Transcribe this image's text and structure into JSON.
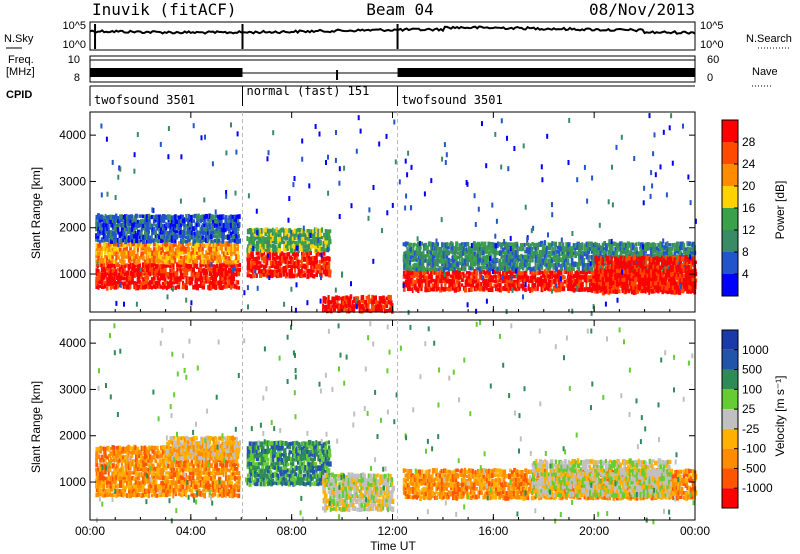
{
  "header": {
    "station": "Inuvik (fitACF)",
    "beam": "Beam 04",
    "date": "08/Nov/2013"
  },
  "strips": {
    "nsky_label": "N.Sky",
    "nsky_ticks": [
      "10^5",
      "10^0"
    ],
    "nsearch_label": "N.Search",
    "nsearch_ticks": [
      "10^5",
      "10^0"
    ],
    "freq_label_1": "Freq.",
    "freq_label_2": "[MHz]",
    "freq_ticks": [
      "10",
      "8"
    ],
    "nave_label": "Nave",
    "nave_ticks": [
      "60",
      "0"
    ],
    "cpid_label": "CPID",
    "cpid_segments": [
      {
        "label": "twofsound 3501",
        "start": 0,
        "end": 6.05
      },
      {
        "label": "normal (fast) 151",
        "start": 6.05,
        "end": 12.2
      },
      {
        "label": "twofsound 3501",
        "start": 12.2,
        "end": 24
      }
    ]
  },
  "colors": {
    "power": [
      "#0000ff",
      "#2255cc",
      "#3a8a66",
      "#3aa04a",
      "#ffd200",
      "#ff8c00",
      "#ff4a00",
      "#ff0000"
    ],
    "velocity": [
      "#ff0000",
      "#ff5500",
      "#ff8c00",
      "#ffb000",
      "#c0c0c0",
      "#66cc33",
      "#2e8b57",
      "#2255aa",
      "#1a3aa8"
    ]
  },
  "chart_data": [
    {
      "type": "heatmap",
      "name": "power",
      "ylabel": "Slant Range [km]",
      "ylim": [
        180,
        4500
      ],
      "xlim": [
        0,
        24
      ],
      "y_ticks": [
        1000,
        2000,
        3000,
        4000
      ],
      "x_tick_labels": [
        "00:00",
        "04:00",
        "08:00",
        "12:00",
        "16:00",
        "20:00",
        "00:00"
      ],
      "colorbar": {
        "label": "Power [dB]",
        "ticks": [
          "28",
          "24",
          "20",
          "16",
          "12",
          "8",
          "4"
        ]
      },
      "regions": [
        {
          "t0": 0.2,
          "t1": 5.9,
          "r0": 700,
          "r1": 1250,
          "level": 7
        },
        {
          "t0": 0.2,
          "t1": 5.9,
          "r0": 1250,
          "r1": 1700,
          "level": 5
        },
        {
          "t0": 0.2,
          "t1": 5.9,
          "r0": 1700,
          "r1": 2300,
          "level": 1
        },
        {
          "t0": 6.2,
          "t1": 9.5,
          "r0": 950,
          "r1": 1500,
          "level": 7
        },
        {
          "t0": 6.2,
          "t1": 9.5,
          "r0": 1500,
          "r1": 2000,
          "level": 3
        },
        {
          "t0": 9.2,
          "t1": 12.0,
          "r0": 200,
          "r1": 550,
          "level": 7
        },
        {
          "t0": 12.4,
          "t1": 24,
          "r0": 650,
          "r1": 1100,
          "level": 7
        },
        {
          "t0": 12.4,
          "t1": 24,
          "r0": 1100,
          "r1": 1700,
          "level": 2
        },
        {
          "t0": 20.0,
          "t1": 24,
          "r0": 600,
          "r1": 1400,
          "level": 7
        }
      ]
    },
    {
      "type": "heatmap",
      "name": "velocity",
      "ylabel": "Slant Range [km]",
      "xlabel": "Time UT",
      "ylim": [
        180,
        4500
      ],
      "xlim": [
        0,
        24
      ],
      "y_ticks": [
        1000,
        2000,
        3000,
        4000
      ],
      "x_tick_labels": [
        "00:00",
        "04:00",
        "08:00",
        "12:00",
        "16:00",
        "20:00",
        "00:00"
      ],
      "colorbar": {
        "label": "Velocity [m s⁻¹]",
        "ticks": [
          "1000",
          "500",
          "100",
          "25",
          "-25",
          "-100",
          "-500",
          "-1000"
        ]
      },
      "regions": [
        {
          "t0": 0.2,
          "t1": 5.9,
          "r0": 700,
          "r1": 1800,
          "level": 2
        },
        {
          "t0": 3.0,
          "t1": 5.9,
          "r0": 1500,
          "r1": 2000,
          "level": 3
        },
        {
          "t0": 6.2,
          "t1": 9.5,
          "r0": 950,
          "r1": 1900,
          "level": 6
        },
        {
          "t0": 9.2,
          "t1": 12.0,
          "r0": 400,
          "r1": 1200,
          "level": 4
        },
        {
          "t0": 12.4,
          "t1": 24,
          "r0": 650,
          "r1": 1300,
          "level": 2
        },
        {
          "t0": 17.5,
          "t1": 23,
          "r0": 700,
          "r1": 1500,
          "level": 4
        }
      ]
    }
  ]
}
